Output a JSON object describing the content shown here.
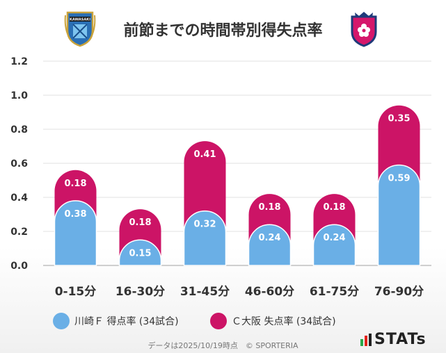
{
  "header": {
    "title": "前節までの時間帯別得失点率",
    "left_crest_text": "KAWASAKI"
  },
  "chart_data": {
    "type": "bar",
    "stacked": true,
    "title": "前節までの時間帯別得失点率",
    "categories": [
      "0-15分",
      "16-30分",
      "31-45分",
      "46-60分",
      "61-75分",
      "76-90分"
    ],
    "series": [
      {
        "name": "川崎Ｆ 得点率 (34試合)",
        "color": "#6aafe6",
        "values": [
          0.38,
          0.15,
          0.32,
          0.24,
          0.24,
          0.59
        ]
      },
      {
        "name": "Ｃ大阪 失点率 (34試合)",
        "color": "#cc1466",
        "values": [
          0.18,
          0.18,
          0.41,
          0.18,
          0.18,
          0.35
        ]
      }
    ],
    "yticks": [
      "0.0",
      "0.2",
      "0.4",
      "0.6",
      "0.8",
      "1.0",
      "1.2"
    ],
    "ylim": [
      0,
      1.2
    ],
    "grid": true,
    "legend_position": "bottom"
  },
  "footer": {
    "note": "データは2025/10/19時点　© SPORTERIA",
    "brand": "STATs"
  },
  "colors": {
    "frontale_blue": "#6aafe6",
    "cerezo_pink": "#cc1466"
  }
}
